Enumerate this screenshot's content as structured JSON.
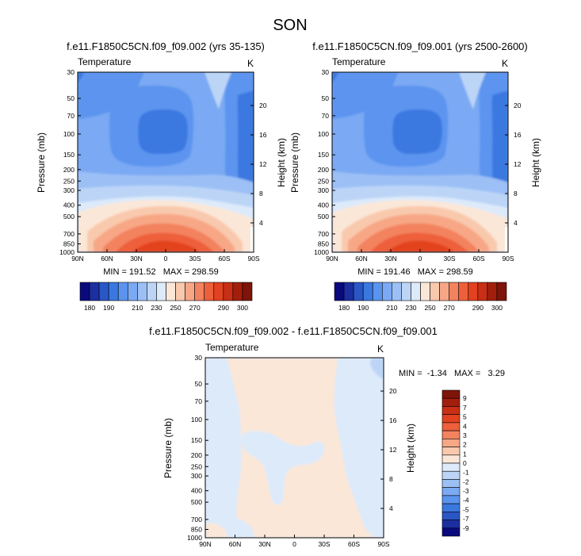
{
  "figure_title": "SON",
  "colors": {
    "abs_scale": [
      "#0a0a7d",
      "#1b2fa0",
      "#2a56c6",
      "#3a78e0",
      "#5b94ef",
      "#7ba9f3",
      "#9cc0f6",
      "#bcd5f7",
      "#ddeafa",
      "#fbe7d8",
      "#f9c9ad",
      "#f7a786",
      "#f3825f",
      "#ee5f3b",
      "#e2421f",
      "#c82f14",
      "#a31f0c",
      "#7e140a"
    ],
    "diff_scale": [
      "#0a0a7d",
      "#1b2fa0",
      "#2a56c6",
      "#3a78e0",
      "#5b94ef",
      "#7ba9f3",
      "#9cc0f6",
      "#bcd5f7",
      "#ddeafa",
      "#fbe7d8",
      "#f9c9ad",
      "#f7a786",
      "#f3825f",
      "#ee5f3b",
      "#e2421f",
      "#c82f14",
      "#a31f0c",
      "#7e140a"
    ]
  },
  "chart_data": [
    {
      "type": "heatmap",
      "title": "f.e11.F1850C5CN.f09_f09.002 (yrs 35-135)",
      "variable_label": "Temperature",
      "units_label": "K",
      "ylabel": "Pressure (mb)",
      "ylabel_right": "Height (km)",
      "x_ticks": [
        "90N",
        "60N",
        "30N",
        "0",
        "30S",
        "60S",
        "90S"
      ],
      "x_values": [
        90,
        60,
        30,
        0,
        -30,
        -60,
        -90
      ],
      "xlim": [
        90,
        -90
      ],
      "y_ticks": [
        "30",
        "50",
        "70",
        "100",
        "150",
        "200",
        "250",
        "300",
        "400",
        "500",
        "700",
        "850",
        "1000"
      ],
      "y_values": [
        30,
        50,
        70,
        100,
        150,
        200,
        250,
        300,
        400,
        500,
        700,
        850,
        1000
      ],
      "ylim": [
        1000,
        30
      ],
      "height_ticks": [
        "20",
        "16",
        "12",
        "8",
        "4"
      ],
      "height_values": [
        20,
        16,
        12,
        8,
        4
      ],
      "stats": "MIN = 191.52   MAX = 298.59",
      "min": 191.52,
      "max": 298.59,
      "colorbar_labels": [
        "180",
        "190",
        "210",
        "230",
        "250",
        "270",
        "290",
        "300"
      ]
    },
    {
      "type": "heatmap",
      "title": "f.e11.F1850C5CN.f09_f09.001 (yrs 2500-2600)",
      "variable_label": "Temperature",
      "units_label": "K",
      "ylabel": "Pressure (mb)",
      "ylabel_right": "Height (km)",
      "x_ticks": [
        "90N",
        "60N",
        "30N",
        "0",
        "30S",
        "60S",
        "90S"
      ],
      "x_values": [
        90,
        60,
        30,
        0,
        -30,
        -60,
        -90
      ],
      "xlim": [
        90,
        -90
      ],
      "y_ticks": [
        "30",
        "50",
        "70",
        "100",
        "150",
        "200",
        "250",
        "300",
        "400",
        "500",
        "700",
        "850",
        "1000"
      ],
      "y_values": [
        30,
        50,
        70,
        100,
        150,
        200,
        250,
        300,
        400,
        500,
        700,
        850,
        1000
      ],
      "ylim": [
        1000,
        30
      ],
      "height_ticks": [
        "20",
        "16",
        "12",
        "8",
        "4"
      ],
      "height_values": [
        20,
        16,
        12,
        8,
        4
      ],
      "stats": "MIN = 191.46   MAX = 298.59",
      "min": 191.46,
      "max": 298.59,
      "colorbar_labels": [
        "180",
        "190",
        "210",
        "230",
        "250",
        "270",
        "290",
        "300"
      ]
    },
    {
      "type": "heatmap",
      "title": "f.e11.F1850C5CN.f09_f09.002 - f.e11.F1850C5CN.f09_f09.001",
      "variable_label": "Temperature",
      "units_label": "K",
      "ylabel": "Pressure (mb)",
      "ylabel_right": "Height (km)",
      "x_ticks": [
        "90N",
        "60N",
        "30N",
        "0",
        "30S",
        "60S",
        "90S"
      ],
      "x_values": [
        90,
        60,
        30,
        0,
        -30,
        -60,
        -90
      ],
      "xlim": [
        90,
        -90
      ],
      "y_ticks": [
        "30",
        "50",
        "70",
        "100",
        "150",
        "200",
        "250",
        "300",
        "400",
        "500",
        "700",
        "850",
        "1000"
      ],
      "y_values": [
        30,
        50,
        70,
        100,
        150,
        200,
        250,
        300,
        400,
        500,
        700,
        850,
        1000
      ],
      "ylim": [
        1000,
        30
      ],
      "height_ticks": [
        "20",
        "16",
        "12",
        "8",
        "4"
      ],
      "height_values": [
        20,
        16,
        12,
        8,
        4
      ],
      "stats": "MIN =  -1.34   MAX =   3.29",
      "min": -1.34,
      "max": 3.29,
      "colorbar_labels": [
        "9",
        "7",
        "5",
        "4",
        "3",
        "2",
        "1",
        "0",
        "-1",
        "-2",
        "-3",
        "-4",
        "-5",
        "-7",
        "-9"
      ]
    }
  ]
}
